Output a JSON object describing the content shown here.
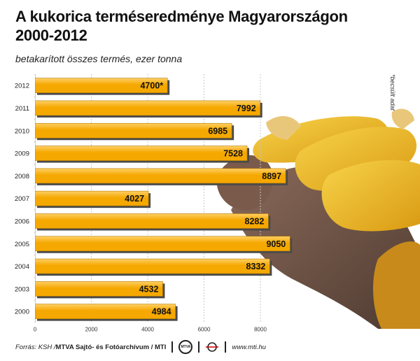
{
  "title_line1": "A kukorica terméseredménye Magyarországon",
  "title_line2": "2000-2012",
  "subtitle": "betakarított összes termés, ezer tonna",
  "footnote": "*becsült adat",
  "footer": {
    "source": "Forrás: KSH / ",
    "agency": "MTVA Sajtó- és Fotóarchívum / MTI",
    "mtva_logo": "MTVA",
    "website": "www.mti.hu"
  },
  "colors": {
    "bar_fill": "#f5a800",
    "bar_highlight": "#ffd066",
    "bar_shadow": "#4a4a4a",
    "grid": "#c8c8c8"
  },
  "chart_data": {
    "type": "bar",
    "orientation": "horizontal",
    "categories": [
      "2012",
      "2011",
      "2010",
      "2009",
      "2008",
      "2007",
      "2006",
      "2005",
      "2004",
      "2003",
      "2000"
    ],
    "values": [
      4700,
      7992,
      6985,
      7528,
      8897,
      4027,
      8282,
      9050,
      8332,
      4532,
      4984
    ],
    "value_labels": [
      "4700*",
      "7992",
      "6985",
      "7528",
      "8897",
      "4027",
      "8282",
      "9050",
      "8332",
      "4532",
      "4984"
    ],
    "xlim": [
      0,
      10000
    ],
    "xticks": [
      "0",
      "2000",
      "4000",
      "6000",
      "8000"
    ],
    "xtick_values": [
      0,
      2000,
      4000,
      6000,
      8000
    ],
    "grid": true
  }
}
